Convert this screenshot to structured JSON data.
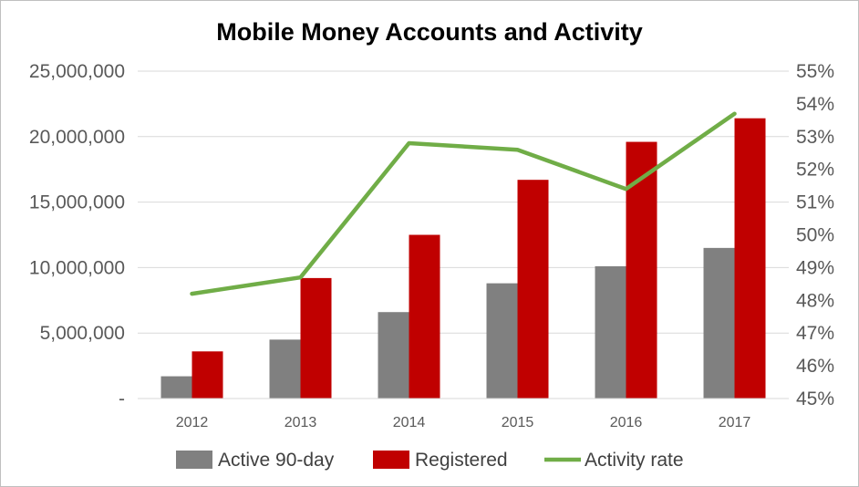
{
  "chart_data": {
    "type": "bar",
    "title": "Mobile Money Accounts and Activity",
    "categories": [
      "2012",
      "2013",
      "2014",
      "2015",
      "2016",
      "2017"
    ],
    "series": [
      {
        "name": "Active 90-day",
        "type": "bar",
        "axis": "left",
        "color": "#808080",
        "values": [
          1700000,
          4500000,
          6600000,
          8800000,
          10100000,
          11500000
        ]
      },
      {
        "name": "Registered",
        "type": "bar",
        "axis": "left",
        "color": "#c00000",
        "values": [
          3600000,
          9200000,
          12500000,
          16700000,
          19600000,
          21400000
        ]
      },
      {
        "name": "Activity rate",
        "type": "line",
        "axis": "right",
        "color": "#70ad47",
        "values": [
          0.482,
          0.487,
          0.528,
          0.526,
          0.514,
          0.537
        ]
      }
    ],
    "y_left": {
      "min": 0,
      "max": 25000000,
      "ticks": [
        {
          "value": 0,
          "label": "-"
        },
        {
          "value": 5000000,
          "label": "5,000,000"
        },
        {
          "value": 10000000,
          "label": "10,000,000"
        },
        {
          "value": 15000000,
          "label": "15,000,000"
        },
        {
          "value": 20000000,
          "label": "20,000,000"
        },
        {
          "value": 25000000,
          "label": "25,000,000"
        }
      ]
    },
    "y_right": {
      "min": 0.45,
      "max": 0.55,
      "ticks": [
        {
          "value": 0.45,
          "label": "45%"
        },
        {
          "value": 0.46,
          "label": "46%"
        },
        {
          "value": 0.47,
          "label": "47%"
        },
        {
          "value": 0.48,
          "label": "48%"
        },
        {
          "value": 0.49,
          "label": "49%"
        },
        {
          "value": 0.5,
          "label": "50%"
        },
        {
          "value": 0.51,
          "label": "51%"
        },
        {
          "value": 0.52,
          "label": "52%"
        },
        {
          "value": 0.53,
          "label": "53%"
        },
        {
          "value": 0.54,
          "label": "54%"
        },
        {
          "value": 0.55,
          "label": "55%"
        }
      ]
    },
    "grid": true,
    "legend": "bottom"
  }
}
